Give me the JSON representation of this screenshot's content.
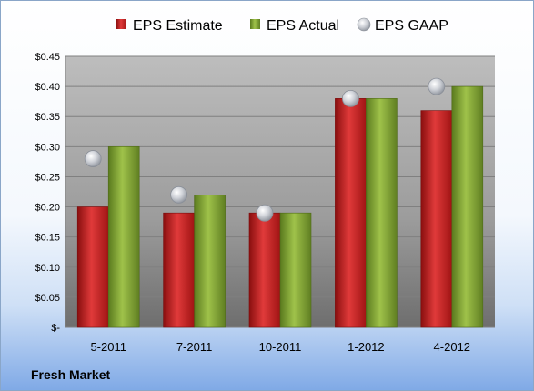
{
  "company_label": "Fresh Market",
  "chart_data": {
    "type": "bar",
    "categories": [
      "5-2011",
      "7-2011",
      "10-2011",
      "1-2012",
      "4-2012"
    ],
    "series": [
      {
        "name": "EPS Estimate",
        "type": "bar",
        "values": [
          0.2,
          0.19,
          0.19,
          0.38,
          0.36
        ]
      },
      {
        "name": "EPS Actual",
        "type": "bar",
        "values": [
          0.3,
          0.22,
          0.19,
          0.38,
          0.4
        ]
      },
      {
        "name": "EPS GAAP",
        "type": "scatter",
        "values": [
          0.28,
          0.22,
          0.19,
          0.38,
          0.4
        ]
      }
    ],
    "y_ticks": [
      {
        "value": 0.45,
        "label": "$0.45"
      },
      {
        "value": 0.4,
        "label": "$0.40"
      },
      {
        "value": 0.35,
        "label": "$0.35"
      },
      {
        "value": 0.3,
        "label": "$0.30"
      },
      {
        "value": 0.25,
        "label": "$0.25"
      },
      {
        "value": 0.2,
        "label": "$0.20"
      },
      {
        "value": 0.15,
        "label": "$0.15"
      },
      {
        "value": 0.1,
        "label": "$0.10"
      },
      {
        "value": 0.05,
        "label": "$0.05"
      },
      {
        "value": 0,
        "label": "$-"
      }
    ],
    "ylim": [
      0,
      0.45
    ],
    "grid": true,
    "legend_position": "top",
    "colors": {
      "estimate": "#d42a2a",
      "actual": "#86a83a",
      "gaap": "#b8bcc4"
    }
  }
}
